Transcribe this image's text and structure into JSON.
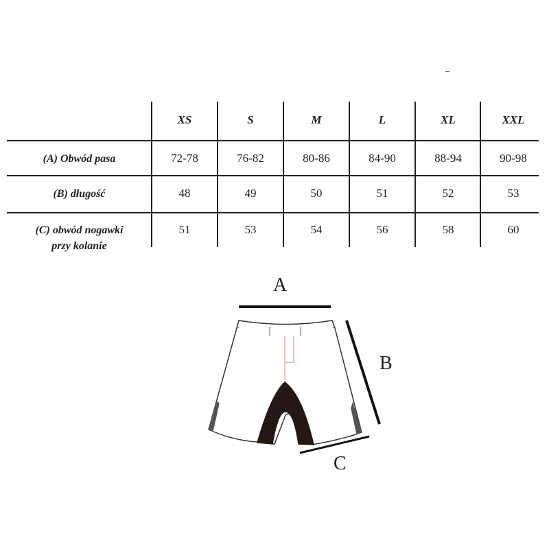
{
  "table": {
    "sizes": [
      "XS",
      "S",
      "M",
      "L",
      "XL",
      "XXL"
    ],
    "rows": [
      {
        "label_lines": [
          "(A) Obwód pasa"
        ],
        "values": [
          "72-78",
          "76-82",
          "80-86",
          "84-90",
          "88-94",
          "90-98"
        ]
      },
      {
        "label_lines": [
          "(B) długość"
        ],
        "values": [
          "48",
          "49",
          "50",
          "51",
          "52",
          "53"
        ]
      },
      {
        "label_lines": [
          "(C) obwód nogawki",
          "przy kolanie"
        ],
        "values": [
          "51",
          "53",
          "54",
          "56",
          "58",
          "60"
        ]
      }
    ]
  },
  "diagram": {
    "label_a": "A",
    "label_b": "B",
    "label_c": "C",
    "colors": {
      "outline": "#333333",
      "gusset": "#231815",
      "side_panel": "#555555"
    }
  }
}
